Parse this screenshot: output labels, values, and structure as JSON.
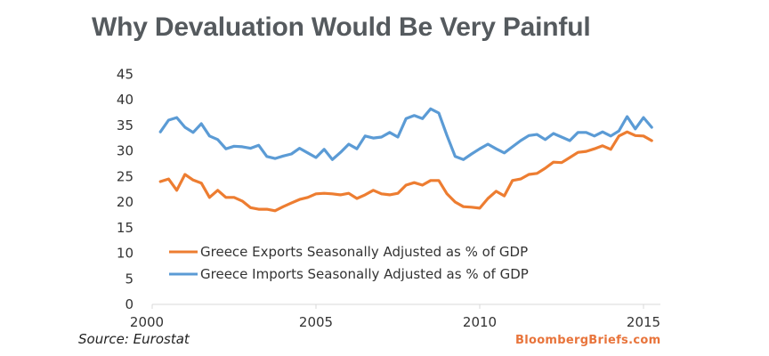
{
  "title": "Why Devaluation Would Be Very Painful",
  "source": "Source: Eurostat",
  "brand": "BloombergBriefs.com",
  "chart_data": {
    "type": "line",
    "title": "Why Devaluation Would Be Very Painful",
    "xlabel": "",
    "ylabel": "",
    "xlim": [
      2000,
      2015.5
    ],
    "ylim": [
      0,
      45
    ],
    "yticks": [
      0,
      5,
      10,
      15,
      20,
      25,
      30,
      35,
      40,
      45
    ],
    "xticks": [
      2000,
      2005,
      2010,
      2015
    ],
    "ytick_labels": [
      "0",
      "5",
      "10",
      "15",
      "20",
      "25",
      "30",
      "35",
      "40",
      "45"
    ],
    "xtick_labels": [
      "2000",
      "2005",
      "2010",
      "2015"
    ],
    "grid": false,
    "legend_position": "lower-left inside plot",
    "x_start": 2000.25,
    "x_step": 0.25,
    "series": [
      {
        "name": "Greece Exports Seasonally Adjusted as % of GDP",
        "color": "#ed7d31",
        "values": [
          24.0,
          24.5,
          22.3,
          25.4,
          24.3,
          23.7,
          20.9,
          22.3,
          20.9,
          20.9,
          20.2,
          18.9,
          18.6,
          18.6,
          18.3,
          19.1,
          19.8,
          20.5,
          20.9,
          21.6,
          21.7,
          21.6,
          21.4,
          21.7,
          20.7,
          21.4,
          22.3,
          21.6,
          21.4,
          21.7,
          23.3,
          23.8,
          23.3,
          24.2,
          24.2,
          21.6,
          20.0,
          19.1,
          19.0,
          18.8,
          20.7,
          22.1,
          21.2,
          24.2,
          24.5,
          25.4,
          25.6,
          26.6,
          27.8,
          27.7,
          28.7,
          29.7,
          29.9,
          30.4,
          31.0,
          30.3,
          32.9,
          33.7,
          33.0,
          32.9,
          32.0
        ]
      },
      {
        "name": "Greece Imports Seasonally Adjusted as % of GDP",
        "color": "#5b9bd5",
        "values": [
          33.7,
          36.0,
          36.5,
          34.6,
          33.6,
          35.3,
          32.9,
          32.2,
          30.4,
          30.9,
          30.8,
          30.5,
          31.1,
          28.9,
          28.5,
          29.0,
          29.4,
          30.5,
          29.6,
          28.7,
          30.3,
          28.3,
          29.7,
          31.3,
          30.4,
          32.9,
          32.5,
          32.7,
          33.6,
          32.7,
          36.3,
          36.9,
          36.3,
          38.2,
          37.4,
          33.0,
          28.9,
          28.3,
          29.4,
          30.4,
          31.3,
          30.4,
          29.6,
          30.8,
          32.0,
          33.0,
          33.2,
          32.2,
          33.4,
          32.7,
          32.0,
          33.6,
          33.6,
          32.9,
          33.7,
          32.9,
          33.9,
          36.7,
          34.3,
          36.5,
          34.6
        ]
      }
    ]
  }
}
